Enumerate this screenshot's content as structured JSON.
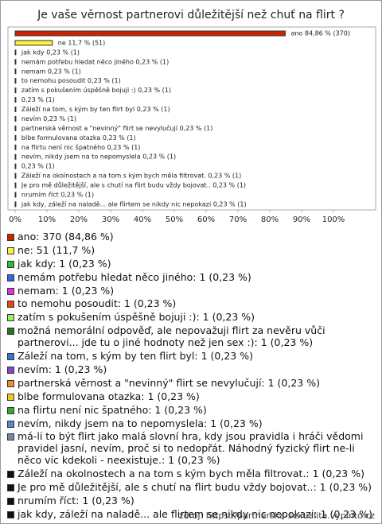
{
  "chart_data": {
    "type": "bar",
    "title": "Je vaše věrnost partnerovi důležitější než chuť na flirt ?",
    "categories": [
      "ano: 370 (84,86 %)",
      "ne: 51 (11,7 %)",
      "jak kdy: 1 (0,23 %)",
      "nemám potřebu hledat něco jiného: 1 (0,23 %)",
      "nemam: 1 (0,23 %)",
      "to nemohu posoudit: 1 (0,23 %)",
      "zatím s pokušením úspěšně bojuji :): 1 (0,23 %)",
      "možná nemorální odpověď, ale nepovažuji flirt za nevěru vůči partnerovi... jde tu o jiné hodnoty než jen sex :): 1 (0,23 %)",
      "Záleží na tom, s kým by ten flirt byl: 1 (0,23 %)",
      "nevím: 1 (0,23 %)",
      "partnerská věrnost a \"nevinný\" flirt se nevylučují: 1 (0,23 %)",
      "blbe formulovana otazka: 1 (0,23 %)",
      "na flirtu není nic špatného: 1 (0,23 %)",
      "nevím, nikdy jsem na to nepomyslela: 1 (0,23 %)",
      "má-li to být flirt jako malá slovní hra, kdy jsou pravidla i hráči vědomi pravidel jasní, nevím, proč si to nedopřát. Náhodný fyzický flirt ne-li něco víc kdekoli - neexistuje.: 1 (0,23 %)",
      "Záleží na okolnostech a na tom s kým bych měla filtrovat.: 1 (0,23 %)",
      "Je pro mě důležitější, ale s chutí na flirt budu vždy bojovat..: 1 (0,23 %)",
      "nrumím říct: 1 (0,23 %)",
      "jak kdy, záleží na naladě... ale flirtem se nikdy nic nepokazi: 1 (0,23 %)"
    ],
    "values": [
      84.86,
      11.7,
      0.23,
      0.23,
      0.23,
      0.23,
      0.23,
      0.23,
      0.23,
      0.23,
      0.23,
      0.23,
      0.23,
      0.23,
      0.23,
      0.23,
      0.23,
      0.23,
      0.23
    ],
    "value_labels": [
      "ano 84,86 % (370)",
      "ne 11,7 % (51)",
      "jak kdy 0,23 % (1)",
      "nemám potřebu hledat něco jiného 0,23 % (1)",
      "nemam 0,23 % (1)",
      "to nemohu posoudit 0,23 % (1)",
      "zatím s pokušením úspěšně bojuji :) 0,23 % (1)",
      "0,23 % (1)",
      "Záleží na tom, s kým by ten flirt byl 0,23 % (1)",
      "nevím 0,23 % (1)",
      "partnerská věrnost a \"nevinný\" flirt se nevylučují 0,23 % (1)",
      "blbe formulovana otazka 0,23 % (1)",
      "na flirtu není nic špatného 0,23 % (1)",
      "nevím, nikdy jsem na to nepomyslela 0,23 % (1)",
      "0,23 % (1)",
      "Záleží na okolnostech a na tom s kým bych měla filtrovat. 0,23 % (1)",
      "Je pro mě důležitější, ale s chutí na flirt budu vždy bojovat.. 0,23 % (1)",
      "nrumím říct 0,23 % (1)",
      "jak kdy, záleží na naladě... ale flirtem se nikdy nic nepokazi 0,23 % (1)"
    ],
    "colors": [
      "#cc2200",
      "#ffee44",
      "#33bb33",
      "#3366ee",
      "#dd33dd",
      "#ee4411",
      "#99ee66",
      "#227722",
      "#3377dd",
      "#8844cc",
      "#ff8822",
      "#eecc22",
      "#33aa33",
      "#5588cc",
      "#7788aa",
      "#111111",
      "#111111",
      "#111111",
      "#111111"
    ],
    "xlim": [
      0,
      110
    ],
    "xticks": [
      {
        "value": 0,
        "label": "0%"
      },
      {
        "value": 10,
        "label": "10%"
      },
      {
        "value": 20,
        "label": "20%"
      },
      {
        "value": 30,
        "label": "30%"
      },
      {
        "value": 40,
        "label": "40%"
      },
      {
        "value": 50,
        "label": "50%"
      },
      {
        "value": 60,
        "label": "60%"
      },
      {
        "value": 70,
        "label": "70%"
      },
      {
        "value": 80,
        "label": "80%"
      },
      {
        "value": 90,
        "label": "90%"
      },
      {
        "value": 100,
        "label": "100%"
      }
    ],
    "source": "zdroj: https://partnerska-sexualita.vyplnto.cz"
  }
}
